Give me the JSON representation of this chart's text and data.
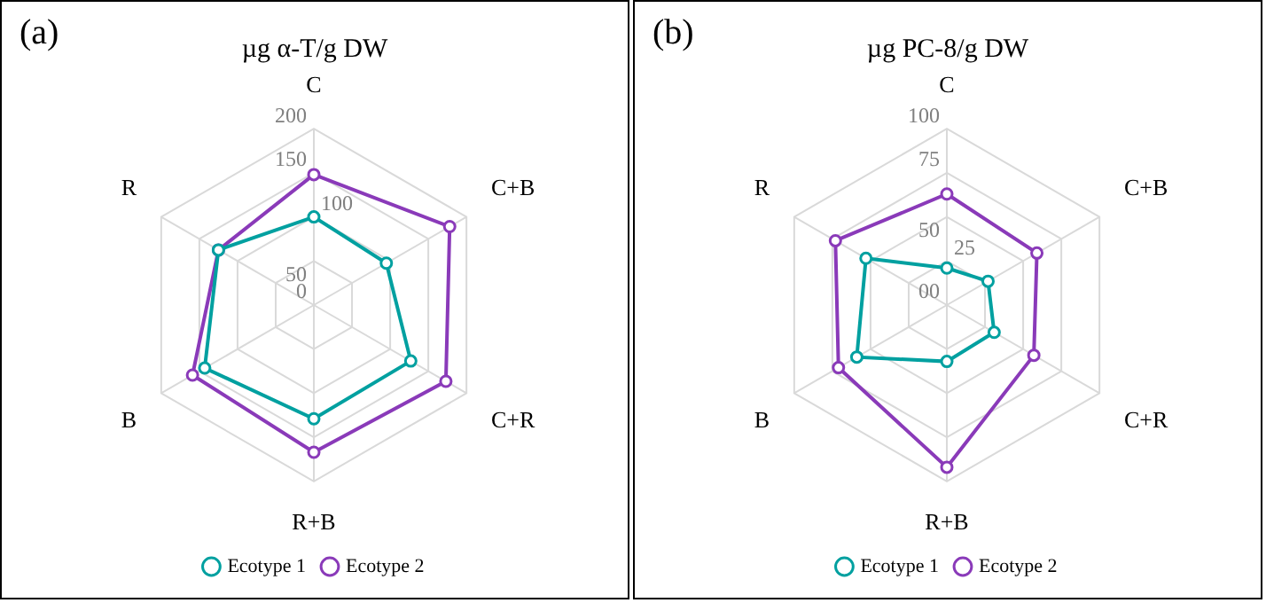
{
  "chart_data": [
    {
      "type": "radar",
      "title": "µg α-T/g DW",
      "annotations": [
        "(a)"
      ],
      "categories": [
        "C",
        "C+B",
        "C+R",
        "R+B",
        "B",
        "R"
      ],
      "ylim": [
        0,
        200
      ],
      "yticks": [
        0,
        50,
        100,
        150,
        200
      ],
      "grid": true,
      "legend": "bottom",
      "marker": "circle",
      "series": [
        {
          "name": "Ecotype 1",
          "color": "#00a0a0",
          "values": [
            100,
            95,
            127,
            129,
            143,
            125
          ]
        },
        {
          "name": "Ecotype 2",
          "color": "#8a3ab9",
          "values": [
            148,
            178,
            173,
            167,
            159,
            125
          ]
        }
      ]
    },
    {
      "type": "radar",
      "title": "µg PC-8/g DW",
      "annotations": [
        "(b)"
      ],
      "categories": [
        "C",
        "C+B",
        "C+R",
        "R+B",
        "B",
        "R"
      ],
      "ylim": [
        0,
        100
      ],
      "yticks": [
        {
          "value": 0,
          "label": "00"
        },
        25,
        50,
        75,
        100
      ],
      "grid": true,
      "legend": "bottom",
      "marker": "circle",
      "series": [
        {
          "name": "Ecotype 1",
          "color": "#00a0a0",
          "values": [
            21,
            27,
            31,
            32,
            59,
            53
          ]
        },
        {
          "name": "Ecotype 2",
          "color": "#8a3ab9",
          "values": [
            63,
            59,
            57,
            92,
            71,
            73
          ]
        }
      ]
    }
  ]
}
